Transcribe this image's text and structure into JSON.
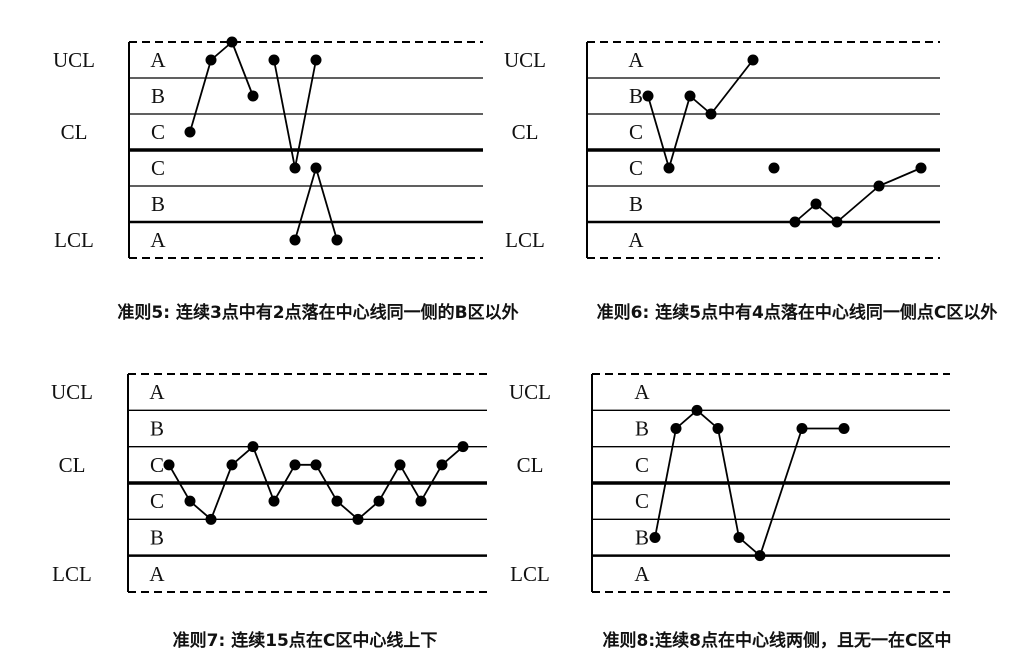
{
  "panels": [
    {
      "id": "rule5",
      "caption": "准则5: 连续3点中有2点落在中心线同一侧的B区以外",
      "limit_labels": [
        "UCL",
        "CL",
        "LCL"
      ],
      "zone_labels": [
        "A",
        "B",
        "C",
        "C",
        "B",
        "A"
      ],
      "points": [
        {
          "x": 0,
          "sigma": 0.5
        },
        {
          "x": 1,
          "sigma": 2.5
        },
        {
          "x": 2,
          "sigma": 3.0
        },
        {
          "x": 3,
          "sigma": 1.5
        },
        {
          "x": 4,
          "sigma": 2.5
        },
        {
          "x": 5,
          "sigma": -0.5
        },
        {
          "x": 6,
          "sigma": 2.5
        },
        {
          "x": 5,
          "sigma": -2.5
        },
        {
          "x": 6,
          "sigma": -0.5
        },
        {
          "x": 7,
          "sigma": -2.5
        }
      ],
      "segments": [
        [
          0,
          1
        ],
        [
          1,
          2
        ],
        [
          2,
          3
        ],
        [
          4,
          5
        ],
        [
          5,
          6
        ],
        [
          7,
          8
        ],
        [
          8,
          9
        ]
      ]
    },
    {
      "id": "rule6",
      "caption": "准则6: 连续5点中有4点落在中心线同一侧点C区以外",
      "limit_labels": [
        "UCL",
        "CL",
        "LCL"
      ],
      "zone_labels": [
        "A",
        "B",
        "C",
        "C",
        "B",
        "A"
      ],
      "points": [
        {
          "x": 0,
          "sigma": 1.5
        },
        {
          "x": 1,
          "sigma": -0.5
        },
        {
          "x": 2,
          "sigma": 1.5
        },
        {
          "x": 3,
          "sigma": 1.0
        },
        {
          "x": 5,
          "sigma": 2.5
        },
        {
          "x": 6,
          "sigma": -0.5
        },
        {
          "x": 7,
          "sigma": -2.0
        },
        {
          "x": 8,
          "sigma": -1.5
        },
        {
          "x": 9,
          "sigma": -2.0
        },
        {
          "x": 11,
          "sigma": -1.0
        },
        {
          "x": 13,
          "sigma": -0.5
        }
      ],
      "segments": [
        [
          0,
          1
        ],
        [
          1,
          2
        ],
        [
          2,
          3
        ],
        [
          3,
          4
        ],
        [
          6,
          7
        ],
        [
          7,
          8
        ],
        [
          8,
          9
        ],
        [
          9,
          10
        ]
      ]
    },
    {
      "id": "rule7",
      "caption": "准则7: 连续15点在C区中心线上下",
      "limit_labels": [
        "UCL",
        "CL",
        "LCL"
      ],
      "zone_labels": [
        "A",
        "B",
        "C",
        "C",
        "B",
        "A"
      ],
      "points": [
        {
          "x": 0,
          "sigma": 0.5
        },
        {
          "x": 1,
          "sigma": -0.5
        },
        {
          "x": 2,
          "sigma": -1.0
        },
        {
          "x": 3,
          "sigma": 0.5
        },
        {
          "x": 4,
          "sigma": 1.0
        },
        {
          "x": 5,
          "sigma": -0.5
        },
        {
          "x": 6,
          "sigma": 0.5
        },
        {
          "x": 7,
          "sigma": 0.5
        },
        {
          "x": 8,
          "sigma": -0.5
        },
        {
          "x": 9,
          "sigma": -1.0
        },
        {
          "x": 10,
          "sigma": -0.5
        },
        {
          "x": 11,
          "sigma": 0.5
        },
        {
          "x": 12,
          "sigma": -0.5
        },
        {
          "x": 13,
          "sigma": 0.5
        },
        {
          "x": 14,
          "sigma": 1.0
        }
      ],
      "segments": [
        [
          0,
          1
        ],
        [
          1,
          2
        ],
        [
          2,
          3
        ],
        [
          3,
          4
        ],
        [
          4,
          5
        ],
        [
          5,
          6
        ],
        [
          6,
          7
        ],
        [
          7,
          8
        ],
        [
          8,
          9
        ],
        [
          9,
          10
        ],
        [
          10,
          11
        ],
        [
          11,
          12
        ],
        [
          12,
          13
        ],
        [
          13,
          14
        ]
      ]
    },
    {
      "id": "rule8",
      "caption": "准则8:连续8点在中心线两侧，且无一在C区中",
      "limit_labels": [
        "UCL",
        "CL",
        "LCL"
      ],
      "zone_labels": [
        "A",
        "B",
        "C",
        "C",
        "B",
        "A"
      ],
      "points": [
        {
          "x": 0,
          "sigma": -1.5
        },
        {
          "x": 1,
          "sigma": 1.5
        },
        {
          "x": 2,
          "sigma": 2.0
        },
        {
          "x": 3,
          "sigma": 1.5
        },
        {
          "x": 4,
          "sigma": -1.5
        },
        {
          "x": 5,
          "sigma": -2.0
        },
        {
          "x": 7,
          "sigma": 1.5
        },
        {
          "x": 9,
          "sigma": 1.5
        }
      ],
      "segments": [
        [
          0,
          1
        ],
        [
          1,
          2
        ],
        [
          2,
          3
        ],
        [
          3,
          4
        ],
        [
          4,
          5
        ],
        [
          5,
          6
        ],
        [
          6,
          7
        ]
      ]
    }
  ]
}
